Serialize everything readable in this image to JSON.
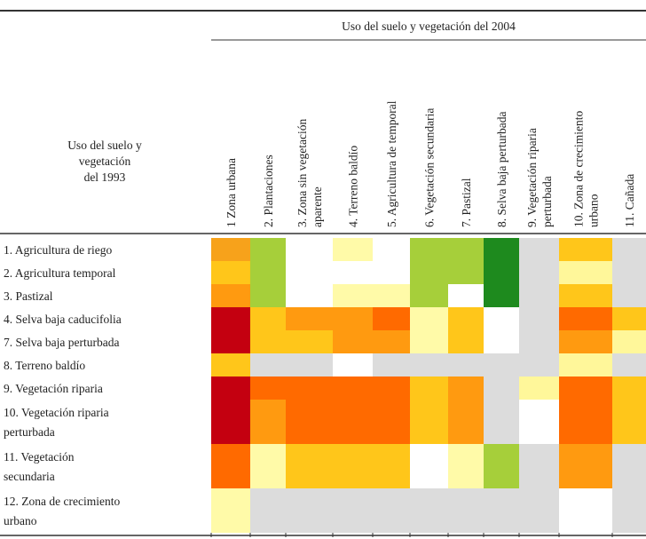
{
  "header": {
    "title": "Uso del suelo y vegetación del 2004",
    "row_header": [
      "Uso del suelo y",
      "vegetación",
      "del 1993"
    ]
  },
  "columns": [
    [
      "1 Zona urbana"
    ],
    [
      "2. Plantaciones"
    ],
    [
      "3. Zona sin vegetación",
      "aparente"
    ],
    [
      "4. Terreno baldío"
    ],
    [
      "5. Agricultura de temporal"
    ],
    [
      "6. Vegetación secundaria"
    ],
    [
      "7. Pastizal"
    ],
    [
      "8. Selva baja perturbada"
    ],
    [
      "9. Vegetación riparia",
      "perturbada"
    ],
    [
      "10. Zona de crecimiento",
      "urbano"
    ],
    [
      "11. Cañada"
    ]
  ],
  "rows": [
    {
      "label": [
        "1. Agricultura de riego"
      ],
      "cells": [
        "#f7a21b",
        "#a6cf3a",
        "#ffffff",
        "#fffaa8",
        "#ffffff",
        "#a6cf3a",
        "#a6cf3a",
        "#1e8a1e",
        "#dcdcdc",
        "#ffc61a",
        "#dcdcdc"
      ]
    },
    {
      "label": [
        "2. Agricultura temporal"
      ],
      "cells": [
        "#ffc61a",
        "#a6cf3a",
        "#ffffff",
        "#ffffff",
        "#ffffff",
        "#a6cf3a",
        "#a6cf3a",
        "#1e8a1e",
        "#dcdcdc",
        "#fff79a",
        "#dcdcdc"
      ]
    },
    {
      "label": [
        "3. Pastizal"
      ],
      "cells": [
        "#ff9a10",
        "#a6cf3a",
        "#ffffff",
        "#fffaa8",
        "#fffaa8",
        "#a6cf3a",
        "#ffffff",
        "#1e8a1e",
        "#dcdcdc",
        "#ffc61a",
        "#dcdcdc"
      ]
    },
    {
      "label": [
        "4. Selva baja caducifolia"
      ],
      "cells": [
        "#c40010",
        "#ffc61a",
        "#ff9a10",
        "#ff9a10",
        "#ff6a00",
        "#fffaa8",
        "#ffc61a",
        "#ffffff",
        "#dcdcdc",
        "#ff6a00",
        "#ffc61a"
      ]
    },
    {
      "label": [
        "7. Selva baja perturbada"
      ],
      "cells": [
        "#c40010",
        "#ffc61a",
        "#ffc61a",
        "#ff9a10",
        "#ff9a10",
        "#fffaa8",
        "#ffc61a",
        "#ffffff",
        "#dcdcdc",
        "#ff9a10",
        "#fff79a"
      ]
    },
    {
      "label": [
        "8. Terreno baldío"
      ],
      "cells": [
        "#ffc61a",
        "#dcdcdc",
        "#dcdcdc",
        "#ffffff",
        "#dcdcdc",
        "#dcdcdc",
        "#dcdcdc",
        "#dcdcdc",
        "#dcdcdc",
        "#fff79a",
        "#dcdcdc"
      ]
    },
    {
      "label": [
        "9. Vegetación riparia"
      ],
      "cells": [
        "#c40010",
        "#ff6a00",
        "#ff6a00",
        "#ff6a00",
        "#ff6a00",
        "#ffc61a",
        "#ff9a10",
        "#dcdcdc",
        "#fff79a",
        "#ff6a00",
        "#ffc61a"
      ]
    },
    {
      "label": [
        "10. Vegetación riparia",
        "perturbada"
      ],
      "cells": [
        "#c40010",
        "#ff9a10",
        "#ff6a00",
        "#ff6a00",
        "#ff6a00",
        "#ffc61a",
        "#ff9a10",
        "#dcdcdc",
        "#ffffff",
        "#ff6a00",
        "#ffc61a"
      ]
    },
    {
      "label": [
        "11. Vegetación",
        "secundaria"
      ],
      "cells": [
        "#ff6a00",
        "#fffaa8",
        "#ffc61a",
        "#ffc61a",
        "#ffc61a",
        "#ffffff",
        "#fffaa8",
        "#a6cf3a",
        "#dcdcdc",
        "#ff9a10",
        "#dcdcdc"
      ]
    },
    {
      "label": [
        "12. Zona de crecimiento",
        "urbano"
      ],
      "cells": [
        "#fffaa8",
        "#dcdcdc",
        "#dcdcdc",
        "#dcdcdc",
        "#dcdcdc",
        "#dcdcdc",
        "#dcdcdc",
        "#dcdcdc",
        "#dcdcdc",
        "#ffffff",
        "#dcdcdc"
      ]
    }
  ]
}
